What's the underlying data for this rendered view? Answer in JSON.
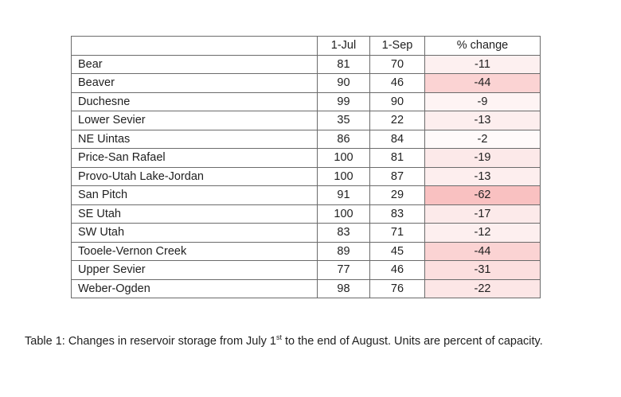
{
  "table": {
    "headers": [
      "",
      "1-Jul",
      "1-Sep",
      "% change"
    ],
    "rows": [
      {
        "name": "Bear",
        "jul": "81",
        "sep": "70",
        "change": "-11",
        "shade": "#fdf0f0"
      },
      {
        "name": "Beaver",
        "jul": "90",
        "sep": "46",
        "change": "-44",
        "shade": "#fbd3d3"
      },
      {
        "name": "Duchesne",
        "jul": "99",
        "sep": "90",
        "change": "-9",
        "shade": "#fef4f4"
      },
      {
        "name": "Lower Sevier",
        "jul": "35",
        "sep": "22",
        "change": "-13",
        "shade": "#fdeeee"
      },
      {
        "name": "NE Uintas",
        "jul": "86",
        "sep": "84",
        "change": "-2",
        "shade": "#fffafa"
      },
      {
        "name": "Price-San Rafael",
        "jul": "100",
        "sep": "81",
        "change": "-19",
        "shade": "#fce9e9"
      },
      {
        "name": "Provo-Utah Lake-Jordan",
        "jul": "100",
        "sep": "87",
        "change": "-13",
        "shade": "#fdeeee"
      },
      {
        "name": "San Pitch",
        "jul": "91",
        "sep": "29",
        "change": "-62",
        "shade": "#f9c1c1"
      },
      {
        "name": "SE Utah",
        "jul": "100",
        "sep": "83",
        "change": "-17",
        "shade": "#fceaea"
      },
      {
        "name": "SW Utah",
        "jul": "83",
        "sep": "71",
        "change": "-12",
        "shade": "#fdefef"
      },
      {
        "name": "Tooele-Vernon Creek",
        "jul": "89",
        "sep": "45",
        "change": "-44",
        "shade": "#fbd3d3"
      },
      {
        "name": "Upper Sevier",
        "jul": "77",
        "sep": "46",
        "change": "-31",
        "shade": "#fcdfdf"
      },
      {
        "name": "Weber-Ogden",
        "jul": "98",
        "sep": "76",
        "change": "-22",
        "shade": "#fce6e6"
      }
    ]
  },
  "caption": {
    "prefix": "Table 1: Changes in reservoir storage from July 1",
    "sup": "st",
    "suffix": " to the end of August.  Units are percent of capacity."
  }
}
